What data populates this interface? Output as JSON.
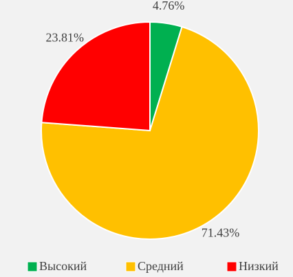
{
  "chart_data": {
    "type": "pie",
    "categories": [
      "Высокий",
      "Средний",
      "Низкий"
    ],
    "values": [
      4.76,
      71.43,
      23.81
    ],
    "value_labels": [
      "4.76%",
      "71.43%",
      "23.81%"
    ],
    "colors": [
      "#00b050",
      "#ffc000",
      "#ff0000"
    ],
    "legend": "bottom"
  }
}
